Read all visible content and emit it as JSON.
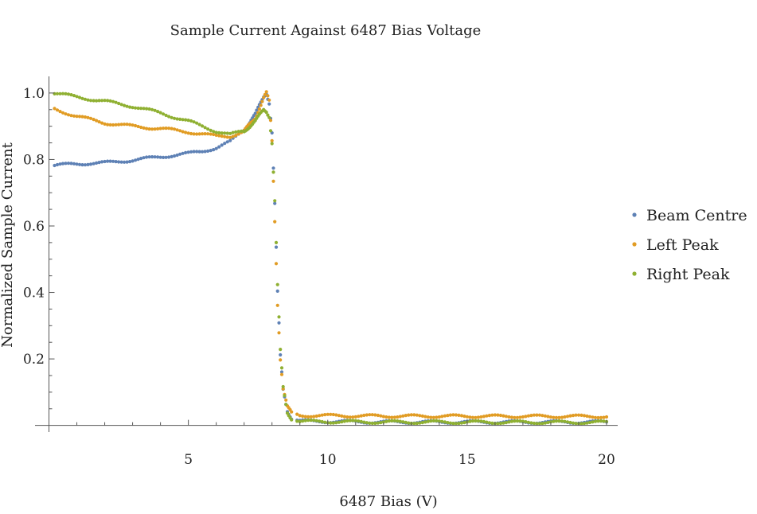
{
  "chart_data": {
    "type": "scatter",
    "title": "Sample Current Against 6487 Bias Voltage",
    "xlabel": "6487 Bias (V)",
    "ylabel": "Normalized Sample Current",
    "xlim": [
      -0.5,
      20.4
    ],
    "ylim": [
      -0.02,
      1.05
    ],
    "x_ticks": [
      5,
      10,
      15,
      20
    ],
    "x_tick_labels": [
      "5",
      "10",
      "15",
      "20"
    ],
    "y_ticks": [
      0.2,
      0.4,
      0.6,
      0.8,
      1.0
    ],
    "y_tick_labels": [
      "0.2",
      "0.4",
      "0.6",
      "0.8",
      "1.0"
    ],
    "grid": false,
    "legend_position": "right",
    "series": [
      {
        "name": "Beam Centre",
        "color": "#5e81b5",
        "key_points": [
          [
            0.2,
            0.782
          ],
          [
            1,
            0.787
          ],
          [
            2,
            0.79
          ],
          [
            3,
            0.798
          ],
          [
            4,
            0.808
          ],
          [
            5,
            0.818
          ],
          [
            5.5,
            0.825
          ],
          [
            6,
            0.835
          ],
          [
            6.5,
            0.853
          ],
          [
            7,
            0.89
          ],
          [
            7.4,
            0.935
          ],
          [
            7.7,
            0.99
          ],
          [
            7.8,
            1.0
          ],
          [
            7.9,
            0.97
          ],
          [
            8.0,
            0.88
          ],
          [
            8.1,
            0.665
          ],
          [
            8.2,
            0.4
          ],
          [
            8.3,
            0.21
          ],
          [
            8.4,
            0.11
          ],
          [
            8.55,
            0.045
          ],
          [
            8.7,
            0.02
          ],
          [
            9,
            0.013
          ],
          [
            12,
            0.01
          ],
          [
            20,
            0.01
          ]
        ]
      },
      {
        "name": "Left Peak",
        "color": "#e19c24",
        "key_points": [
          [
            0.2,
            0.952
          ],
          [
            1,
            0.93
          ],
          [
            2,
            0.91
          ],
          [
            3,
            0.9
          ],
          [
            4,
            0.893
          ],
          [
            5,
            0.883
          ],
          [
            6,
            0.87
          ],
          [
            6.5,
            0.87
          ],
          [
            7,
            0.885
          ],
          [
            7.4,
            0.925
          ],
          [
            7.7,
            0.985
          ],
          [
            7.8,
            1.0
          ],
          [
            7.9,
            0.975
          ],
          [
            8.0,
            0.855
          ],
          [
            8.1,
            0.615
          ],
          [
            8.2,
            0.365
          ],
          [
            8.3,
            0.2
          ],
          [
            8.4,
            0.11
          ],
          [
            8.55,
            0.055
          ],
          [
            8.7,
            0.038
          ],
          [
            9,
            0.03
          ],
          [
            12,
            0.028
          ],
          [
            20,
            0.027
          ]
        ]
      },
      {
        "name": "Right Peak",
        "color": "#8fb032",
        "key_points": [
          [
            0.2,
            1.0
          ],
          [
            1,
            0.988
          ],
          [
            2,
            0.975
          ],
          [
            3,
            0.96
          ],
          [
            4,
            0.94
          ],
          [
            5,
            0.915
          ],
          [
            5.5,
            0.9
          ],
          [
            6,
            0.885
          ],
          [
            6.5,
            0.875
          ],
          [
            7,
            0.885
          ],
          [
            7.4,
            0.915
          ],
          [
            7.7,
            0.95
          ],
          [
            7.8,
            0.945
          ],
          [
            7.9,
            0.93
          ],
          [
            8.0,
            0.85
          ],
          [
            8.1,
            0.675
          ],
          [
            8.2,
            0.42
          ],
          [
            8.3,
            0.225
          ],
          [
            8.4,
            0.115
          ],
          [
            8.55,
            0.04
          ],
          [
            8.7,
            0.02
          ],
          [
            9,
            0.012
          ],
          [
            12,
            0.01
          ],
          [
            20,
            0.009
          ]
        ]
      }
    ]
  }
}
